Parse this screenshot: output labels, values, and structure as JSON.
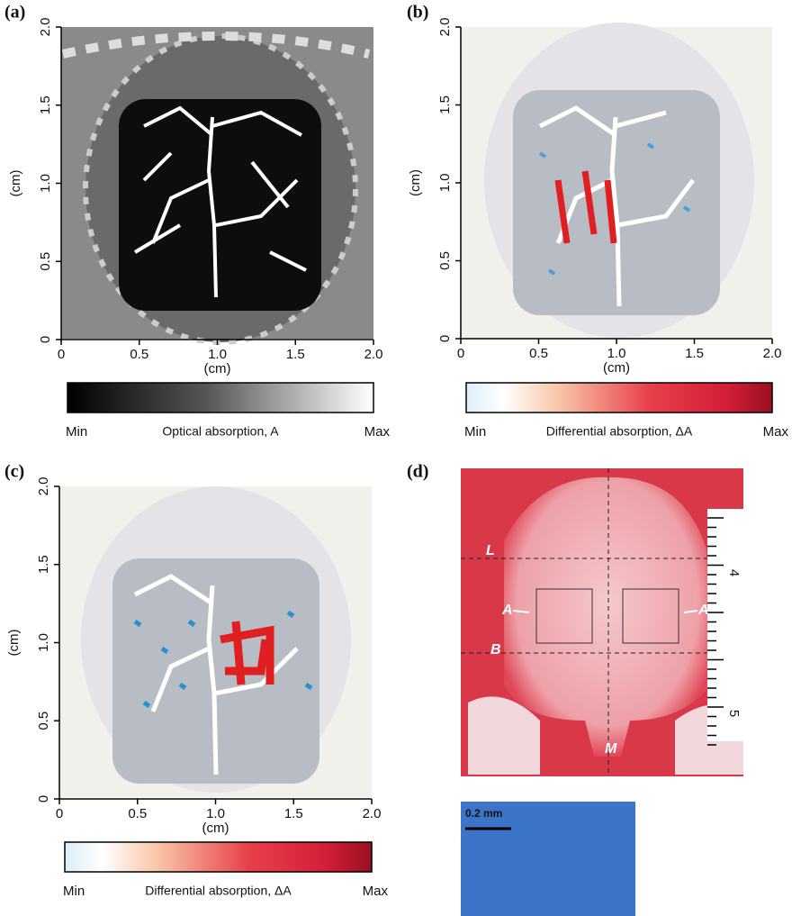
{
  "panels": [
    {
      "label": "(a)",
      "xticks": [
        "0",
        "0.5",
        "1.0",
        "1.5",
        "2.0"
      ],
      "yticks": [
        "0",
        "0.5",
        "1.0",
        "1.5",
        "2.0"
      ],
      "xlabel": "(cm)",
      "ylabel": "(cm)",
      "colorbar": {
        "min": "Min",
        "title": "Optical absorption, A",
        "max": "Max"
      }
    },
    {
      "label": "(b)",
      "xticks": [
        "0",
        "0.5",
        "1.0",
        "1.5",
        "2.0"
      ],
      "yticks": [
        "0",
        "0.5",
        "1.0",
        "1.5",
        "2.0"
      ],
      "xlabel": "(cm)",
      "ylabel": "(cm)",
      "colorbar": {
        "min": "Min",
        "title": "Differential absorption, ΔA",
        "max": "Max"
      }
    },
    {
      "label": "(c)",
      "xticks": [
        "0",
        "0.5",
        "1.0",
        "1.5",
        "2.0"
      ],
      "yticks": [
        "0",
        "0.5",
        "1.0",
        "1.5",
        "2.0"
      ],
      "xlabel": "(cm)",
      "ylabel": "(cm)",
      "colorbar": {
        "min": "Min",
        "title": "Differential absorption, ΔA",
        "max": "Max"
      }
    }
  ],
  "photo": {
    "label": "(d)",
    "marks": [
      "L",
      "B",
      "A",
      "A",
      "M"
    ],
    "ruler": [
      "4",
      "5"
    ],
    "scale": "0.2 mm"
  }
}
